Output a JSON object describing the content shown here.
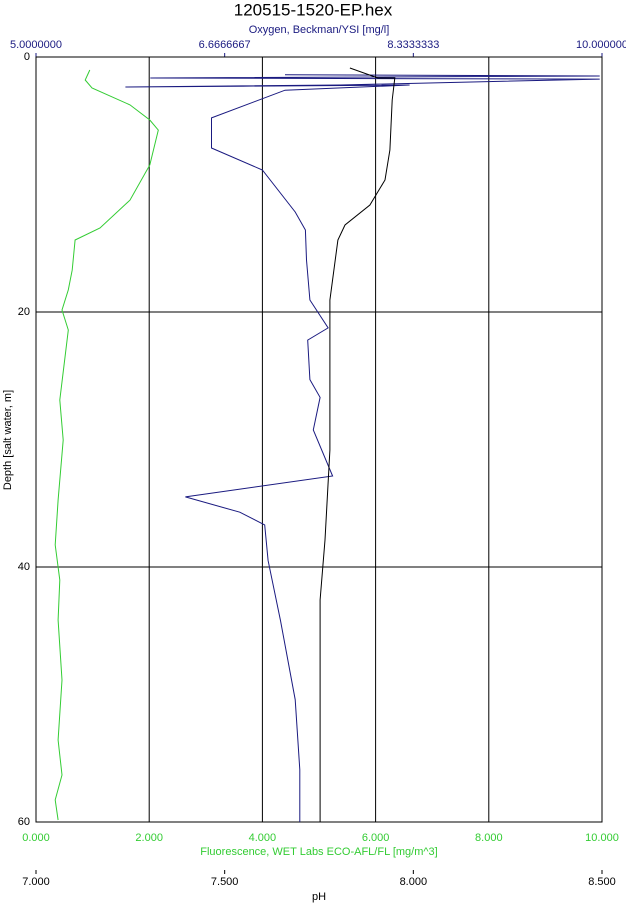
{
  "chart_data": {
    "type": "profile",
    "title": "120515-1520-EP.hex",
    "y_axis": {
      "label": "Depth [salt water, m]",
      "ylim": [
        0,
        60
      ],
      "yticks": [
        0,
        20,
        40,
        60
      ],
      "inverted": true,
      "grid": true
    },
    "x_axes": [
      {
        "position": "top",
        "label": "Oxygen, Beckman/YSI [mg/l]",
        "color": "#1a1a80",
        "xlim": [
          5,
          10
        ],
        "xticks": [
          {
            "value": 5,
            "label": "5.0000000"
          },
          6.6666667,
          8.3333333,
          {
            "value": 10,
            "label": "10.000000"
          }
        ],
        "grid": false
      },
      {
        "position": "bottom",
        "label": "Fluorescence, WET Labs ECO-AFL/FL [mg/m^3]",
        "color": "#33cc33",
        "xlim": [
          0,
          10
        ],
        "xticks": [
          {
            "value": 0,
            "label": "0.000"
          },
          {
            "value": 2,
            "label": "2.000"
          },
          {
            "value": 4,
            "label": "4.000"
          },
          {
            "value": 6,
            "label": "6.000"
          },
          {
            "value": 8,
            "label": "8.000"
          },
          {
            "value": 10,
            "label": "10.000"
          }
        ],
        "grid": true
      },
      {
        "position": "bottom2",
        "label": "pH",
        "color": "#000000",
        "xlim": [
          7,
          8.5
        ],
        "xticks": [
          {
            "value": 7,
            "label": "7.000"
          },
          {
            "value": 7.5,
            "label": "7.500"
          },
          {
            "value": 8,
            "label": "8.000"
          },
          {
            "value": 8.5,
            "label": "8.500"
          }
        ],
        "grid": false
      }
    ],
    "series": [
      {
        "x_axis": 1,
        "color": "#33cc33",
        "x": [
          0.95,
          0.87,
          0.99,
          1.66,
          2.01,
          2.16,
          2.01,
          1.66,
          1.13,
          0.69,
          0.64,
          0.57,
          0.46,
          0.57,
          0.42,
          0.48,
          0.39,
          0.34,
          0.42,
          0.39,
          0.46,
          0.39,
          0.46,
          0.34,
          0.39
        ],
        "y": [
          1.02,
          1.8,
          2.43,
          3.76,
          4.94,
          5.73,
          8.47,
          11.22,
          13.41,
          14.35,
          16.71,
          18.27,
          19.84,
          21.41,
          26.9,
          30.04,
          34.75,
          38.27,
          41.02,
          44.16,
          48.86,
          53.57,
          56.31,
          58.27,
          59.84
        ]
      },
      {
        "x_axis": 0,
        "color": "#1a1a80",
        "x": [
          7.2,
          9.98,
          6.01,
          9.98,
          7.69,
          5.79,
          8.3,
          7.2,
          6.55,
          6.55,
          7.0,
          7.29,
          7.38,
          7.39,
          7.42,
          7.58,
          7.4,
          7.42,
          7.51,
          7.45,
          7.62,
          6.32,
          6.8,
          7.02,
          7.05,
          7.16,
          7.29,
          7.33,
          7.33
        ],
        "y": [
          1.4,
          1.49,
          1.65,
          1.73,
          2.2,
          2.35,
          2.2,
          2.6,
          4.78,
          7.14,
          8.86,
          12.16,
          13.57,
          15.92,
          19.06,
          21.25,
          22.2,
          25.3,
          26.7,
          29.25,
          32.86,
          34.5,
          35.7,
          36.7,
          39.5,
          44.2,
          50.4,
          55.9,
          60
        ]
      },
      {
        "x_axis": 2,
        "color": "#000000",
        "x": [
          7.832,
          7.906,
          7.951,
          7.944,
          7.938,
          7.925,
          7.885,
          7.819,
          7.8,
          7.779,
          7.779,
          7.766,
          7.753,
          7.753,
          7.753
        ],
        "y": [
          0.86,
          1.65,
          1.65,
          3.37,
          7.29,
          9.65,
          11.61,
          13.18,
          14.35,
          19.06,
          30.82,
          37.88,
          42.59,
          50.43,
          60
        ]
      }
    ]
  }
}
